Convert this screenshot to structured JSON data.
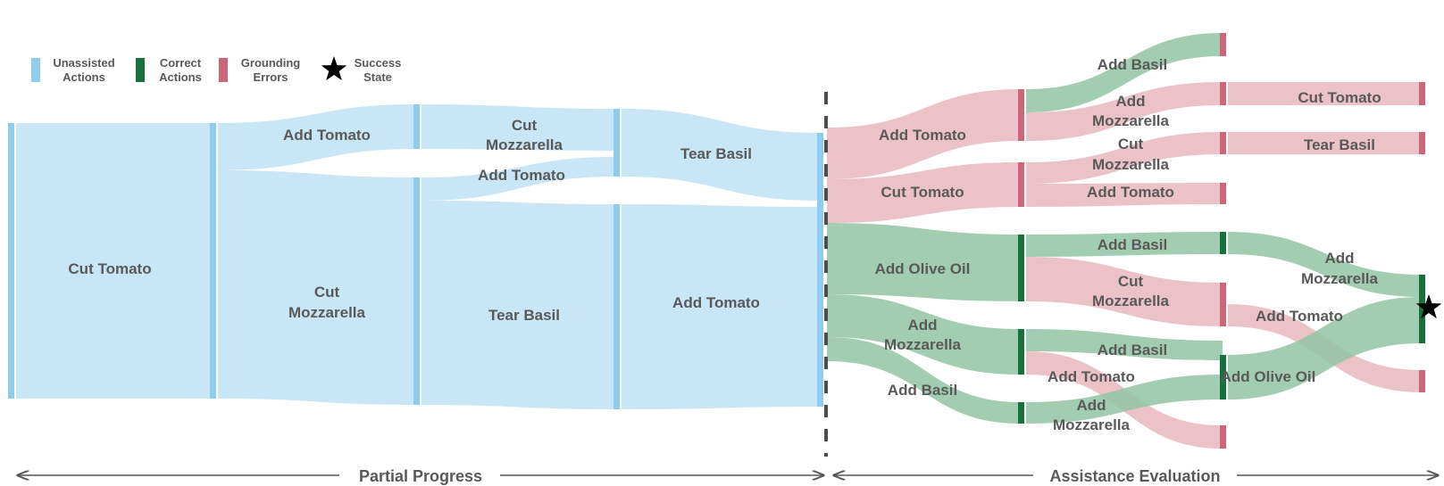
{
  "colors": {
    "unassisted_node": "#8ecdee",
    "unassisted_flow": "#c8e6f6",
    "correct_node": "#16723a",
    "correct_flow": "#93c4a4",
    "error_node": "#cd6676",
    "error_flow": "#e9b7c0",
    "text": "#595959",
    "divider": "#4d4d4d",
    "axis": "#555555",
    "star": "#000000"
  },
  "legend": [
    {
      "label_line1": "Unassisted",
      "label_line2": "Actions",
      "color": "#8ecdee",
      "marker": "bar"
    },
    {
      "label_line1": "Correct",
      "label_line2": "Actions",
      "color": "#16723a",
      "marker": "bar"
    },
    {
      "label_line1": "Grounding",
      "label_line2": "Errors",
      "color": "#cd6676",
      "marker": "bar"
    },
    {
      "label_line1": "Success",
      "label_line2": "State",
      "color": "#000000",
      "marker": "star-icon"
    }
  ],
  "sections": {
    "left": "Partial Progress",
    "right": "Assistance Evaluation"
  },
  "flows": [
    {
      "text": "Cut Tomato",
      "type": "unassisted"
    },
    {
      "text": "Add Tomato",
      "type": "unassisted"
    },
    {
      "text": "Cut Mozzarella",
      "type": "unassisted"
    },
    {
      "text": "Cut Mozzarella",
      "type": "unassisted"
    },
    {
      "text": "Add Tomato",
      "type": "unassisted"
    },
    {
      "text": "Tear Basil",
      "type": "unassisted"
    },
    {
      "text": "Tear Basil",
      "type": "unassisted"
    },
    {
      "text": "Add Tomato",
      "type": "unassisted"
    },
    {
      "text": "Add Tomato",
      "type": "error"
    },
    {
      "text": "Cut Tomato",
      "type": "error"
    },
    {
      "text": "Add Olive Oil",
      "type": "correct"
    },
    {
      "text": "Add Mozzarella",
      "type": "correct"
    },
    {
      "text": "Add Basil",
      "type": "correct"
    },
    {
      "text": "Add Basil",
      "type": "correct"
    },
    {
      "text": "Add Mozzarella",
      "type": "error"
    },
    {
      "text": "Cut Mozzarella",
      "type": "error"
    },
    {
      "text": "Add Tomato",
      "type": "error"
    },
    {
      "text": "Add Basil",
      "type": "correct"
    },
    {
      "text": "Cut Mozzarella",
      "type": "error"
    },
    {
      "text": "Add Basil",
      "type": "correct"
    },
    {
      "text": "Add Tomato",
      "type": "error"
    },
    {
      "text": "Add Mozzarella",
      "type": "correct"
    },
    {
      "text": "Cut Tomato",
      "type": "error"
    },
    {
      "text": "Tear Basil",
      "type": "error"
    },
    {
      "text": "Add Mozzarella",
      "type": "correct"
    },
    {
      "text": "Add Tomato",
      "type": "error"
    },
    {
      "text": "Add Olive Oil",
      "type": "correct"
    }
  ],
  "success_marker": "star-icon"
}
